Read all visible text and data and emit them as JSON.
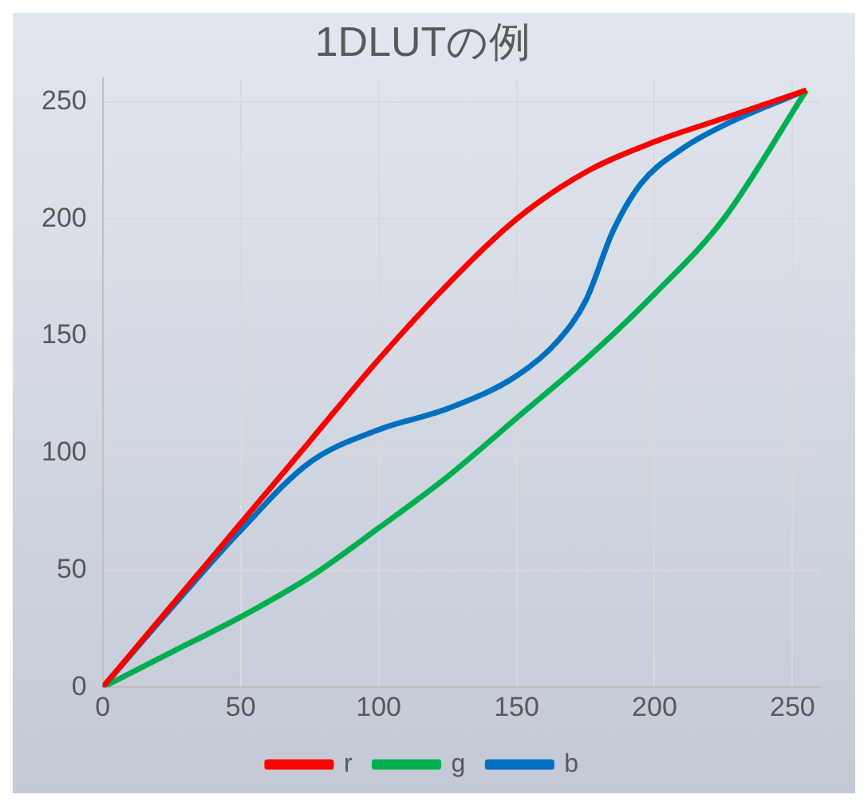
{
  "chart_data": {
    "type": "line",
    "title": "1DLUTの例",
    "xlim": [
      0,
      260
    ],
    "xticks": [
      0,
      50,
      100,
      150,
      200,
      250
    ],
    "ylim": [
      0,
      260
    ],
    "yticks": [
      0,
      50,
      100,
      150,
      200,
      250
    ],
    "grid": true,
    "legend": "bottom",
    "marker": "none",
    "line_style": "solid",
    "series": [
      {
        "name": "r",
        "color": "#ff0000",
        "x": [
          0,
          25,
          50,
          75,
          100,
          125,
          150,
          175,
          200,
          225,
          255
        ],
        "values": [
          0,
          35,
          70,
          105,
          140,
          172,
          200,
          220,
          233,
          243,
          255
        ]
      },
      {
        "name": "g",
        "color": "#00b050",
        "x": [
          0,
          25,
          50,
          75,
          100,
          125,
          150,
          175,
          200,
          225,
          255
        ],
        "values": [
          0,
          15,
          30,
          47,
          68,
          90,
          115,
          140,
          168,
          200,
          255
        ]
      },
      {
        "name": "b",
        "color": "#0070c0",
        "x": [
          0,
          25,
          50,
          75,
          100,
          125,
          150,
          165,
          175,
          185,
          195,
          210,
          225,
          255
        ],
        "values": [
          0,
          34,
          67,
          96,
          110,
          119,
          133,
          148,
          165,
          195,
          215,
          230,
          240,
          255
        ]
      }
    ]
  }
}
